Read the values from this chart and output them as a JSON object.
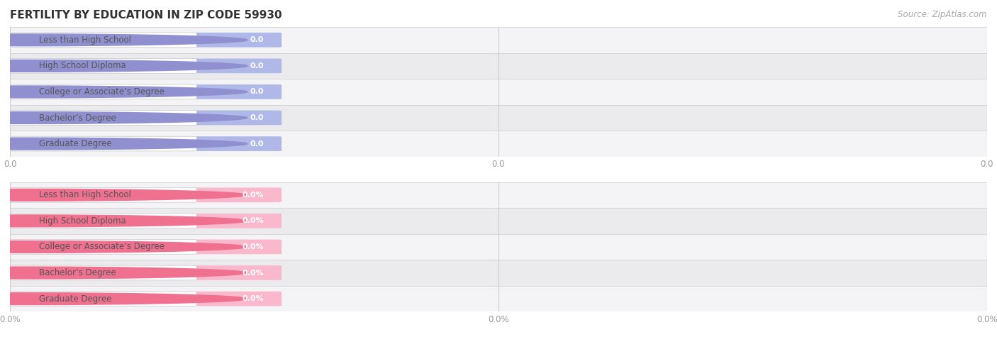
{
  "title": "FERTILITY BY EDUCATION IN ZIP CODE 59930",
  "source": "Source: ZipAtlas.com",
  "categories": [
    "Less than High School",
    "High School Diploma",
    "College or Associate’s Degree",
    "Bachelor’s Degree",
    "Graduate Degree"
  ],
  "top_values": [
    0.0,
    0.0,
    0.0,
    0.0,
    0.0
  ],
  "bottom_values": [
    0.0,
    0.0,
    0.0,
    0.0,
    0.0
  ],
  "top_bar_color": "#b0b8e8",
  "top_label_bg": "#ffffff",
  "top_circle_color": "#9090d0",
  "bottom_bar_color": "#f9b8cc",
  "bottom_label_bg": "#ffffff",
  "bottom_circle_color": "#f07090",
  "row_bg_even": "#f8f8fa",
  "row_bg_odd": "#eeeeef",
  "separator_color": "#dddddd",
  "label_color": "#555555",
  "value_color": "#ffffff",
  "tick_color": "#999999",
  "title_color": "#333333",
  "source_color": "#aaaaaa",
  "figsize": [
    14.06,
    4.75
  ],
  "dpi": 100,
  "top_tick_labels": [
    "0.0",
    "0.0",
    "0.0"
  ],
  "bottom_tick_labels": [
    "0.0%",
    "0.0%",
    "0.0%"
  ]
}
